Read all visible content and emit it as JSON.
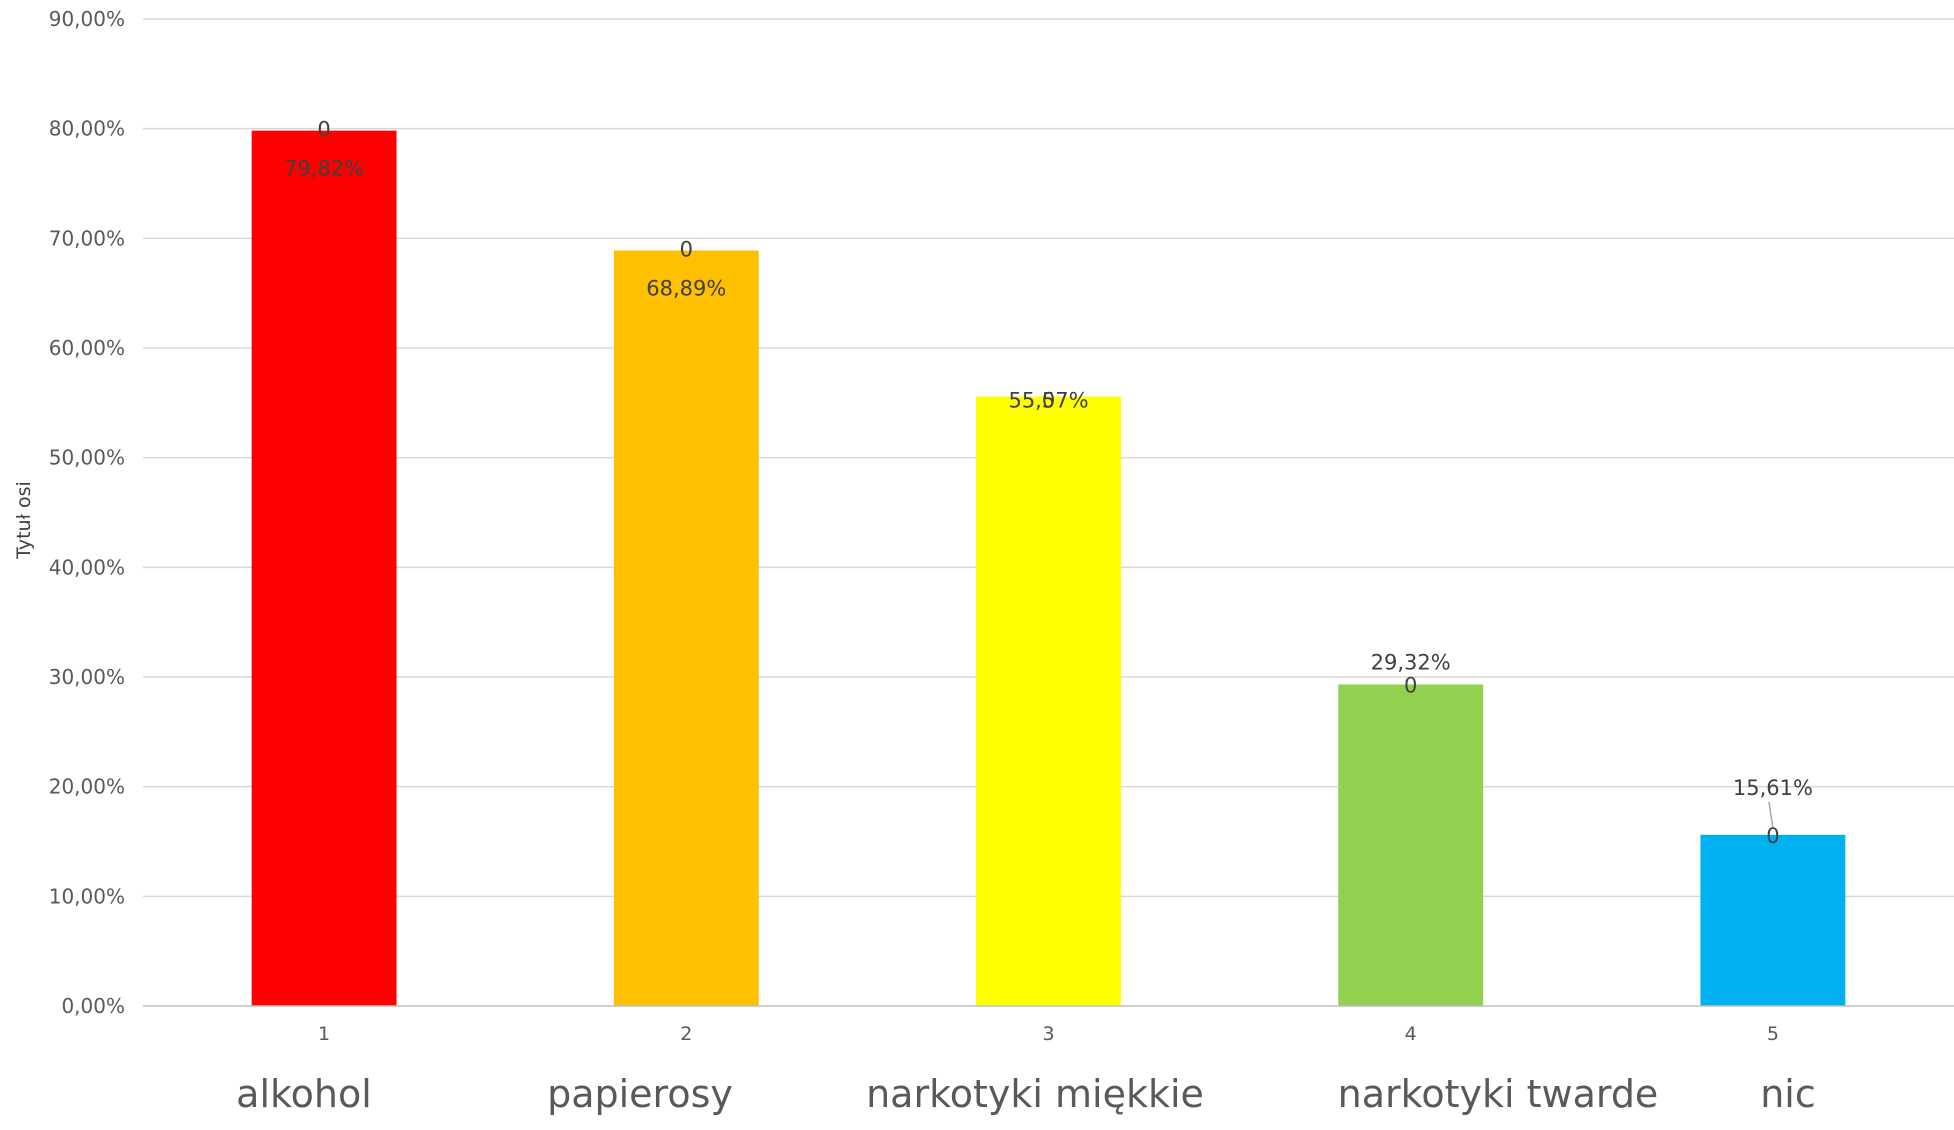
{
  "chart_data": {
    "type": "bar",
    "categories": [
      "1",
      "2",
      "3",
      "4",
      "5"
    ],
    "category_labels": [
      "alkohol",
      "papierosy",
      "narkotyki miękkie",
      "narkotyki twarde",
      "nic"
    ],
    "values": [
      79.82,
      68.89,
      55.57,
      29.32,
      15.61
    ],
    "value_labels": [
      "79,82%",
      "68,89%",
      "55,57%",
      "29,32%",
      "15,61%"
    ],
    "secondary_labels": [
      "0",
      "0",
      "0",
      "0",
      "0"
    ],
    "colors": [
      "#ff0000",
      "#ffc000",
      "#ffff00",
      "#92d050",
      "#00b0f0"
    ],
    "ylabel": "Tytuł osi",
    "ylim": [
      0,
      90
    ],
    "ytick_step": 10,
    "yticks": [
      "0,00%",
      "10,00%",
      "20,00%",
      "30,00%",
      "40,00%",
      "50,00%",
      "60,00%",
      "70,00%",
      "80,00%",
      "90,00%"
    ],
    "grid": true,
    "legend": "none"
  }
}
